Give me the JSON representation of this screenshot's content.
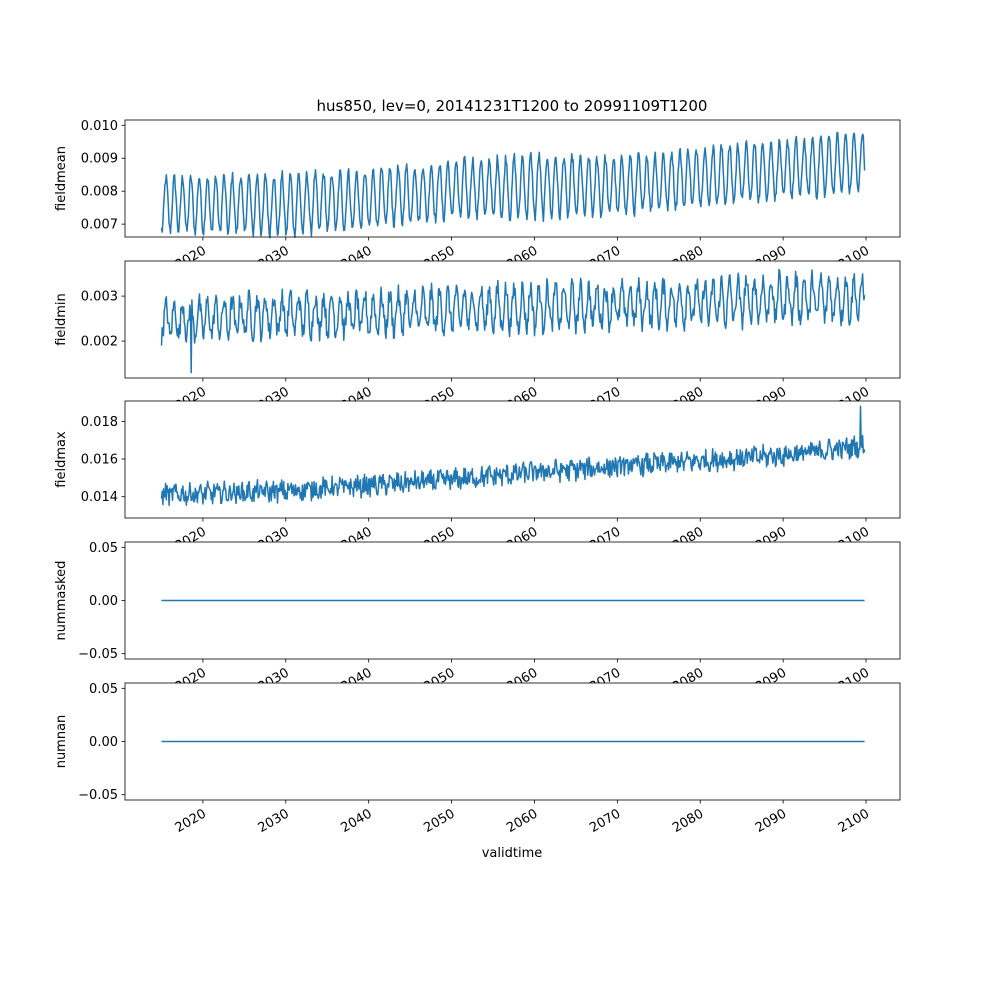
{
  "chart_data": {
    "type": "line",
    "title": "hus850, lev=0, 20141231T1200 to 20991109T1200",
    "xlabel": "validtime",
    "x_range": [
      2015.0,
      2099.86
    ],
    "xlim": [
      2010.6,
      2104.1
    ],
    "xticks": [
      "2020",
      "2030",
      "2040",
      "2050",
      "2060",
      "2070",
      "2080",
      "2090",
      "2100"
    ],
    "color": "#1f77b4",
    "panels": [
      {
        "ylabel": "fieldmean",
        "ylim": [
          0.00661,
          0.01016
        ],
        "yticks": [
          "0.007",
          "0.008",
          "0.009",
          "0.010"
        ],
        "ytick_values": [
          0.007,
          0.008,
          0.009,
          0.01
        ],
        "anchor_years": [
          2015,
          2030,
          2040,
          2050,
          2060,
          2070,
          2080,
          2090,
          2100
        ],
        "seasonal_low": [
          0.0068,
          0.0067,
          0.0069,
          0.0072,
          0.0072,
          0.0073,
          0.0076,
          0.0078,
          0.008
        ],
        "seasonal_high": [
          0.0084,
          0.0085,
          0.0086,
          0.0089,
          0.0091,
          0.009,
          0.0093,
          0.0095,
          0.0098
        ],
        "noise": 0.00015
      },
      {
        "ylabel": "fieldmin",
        "ylim": [
          0.00118,
          0.00378
        ],
        "yticks": [
          "0.002",
          "0.003"
        ],
        "ytick_values": [
          0.002,
          0.003
        ],
        "anchor_years": [
          2015,
          2030,
          2040,
          2050,
          2060,
          2070,
          2080,
          2090,
          2100
        ],
        "seasonal_low": [
          0.0021,
          0.0022,
          0.0022,
          0.0023,
          0.0023,
          0.0024,
          0.0024,
          0.0025,
          0.0025
        ],
        "seasonal_high": [
          0.0028,
          0.003,
          0.003,
          0.0031,
          0.0032,
          0.0032,
          0.0033,
          0.0034,
          0.0034
        ],
        "noise": 0.00022,
        "min_value": 0.0013
      },
      {
        "ylabel": "fieldmax",
        "ylim": [
          0.01287,
          0.01908
        ],
        "yticks": [
          "0.014",
          "0.016",
          "0.018"
        ],
        "ytick_values": [
          0.014,
          0.016,
          0.018
        ],
        "anchor_years": [
          2015,
          2030,
          2040,
          2050,
          2060,
          2070,
          2080,
          2090,
          2100
        ],
        "seasonal_low": [
          0.0136,
          0.0138,
          0.0141,
          0.0144,
          0.0148,
          0.0151,
          0.0154,
          0.0157,
          0.0162
        ],
        "seasonal_high": [
          0.0146,
          0.0148,
          0.0151,
          0.0154,
          0.0158,
          0.0161,
          0.0164,
          0.0167,
          0.0172
        ],
        "noise": 0.0005,
        "max_value": 0.0188
      },
      {
        "ylabel": "nummasked",
        "ylim": [
          -0.055,
          0.055
        ],
        "yticks": [
          "−0.05",
          "0.00",
          "0.05"
        ],
        "ytick_values": [
          -0.05,
          0.0,
          0.05
        ],
        "constant": 0.0
      },
      {
        "ylabel": "numnan",
        "ylim": [
          -0.055,
          0.055
        ],
        "yticks": [
          "−0.05",
          "0.00",
          "0.05"
        ],
        "ytick_values": [
          -0.05,
          0.0,
          0.05
        ],
        "constant": 0.0
      }
    ]
  }
}
